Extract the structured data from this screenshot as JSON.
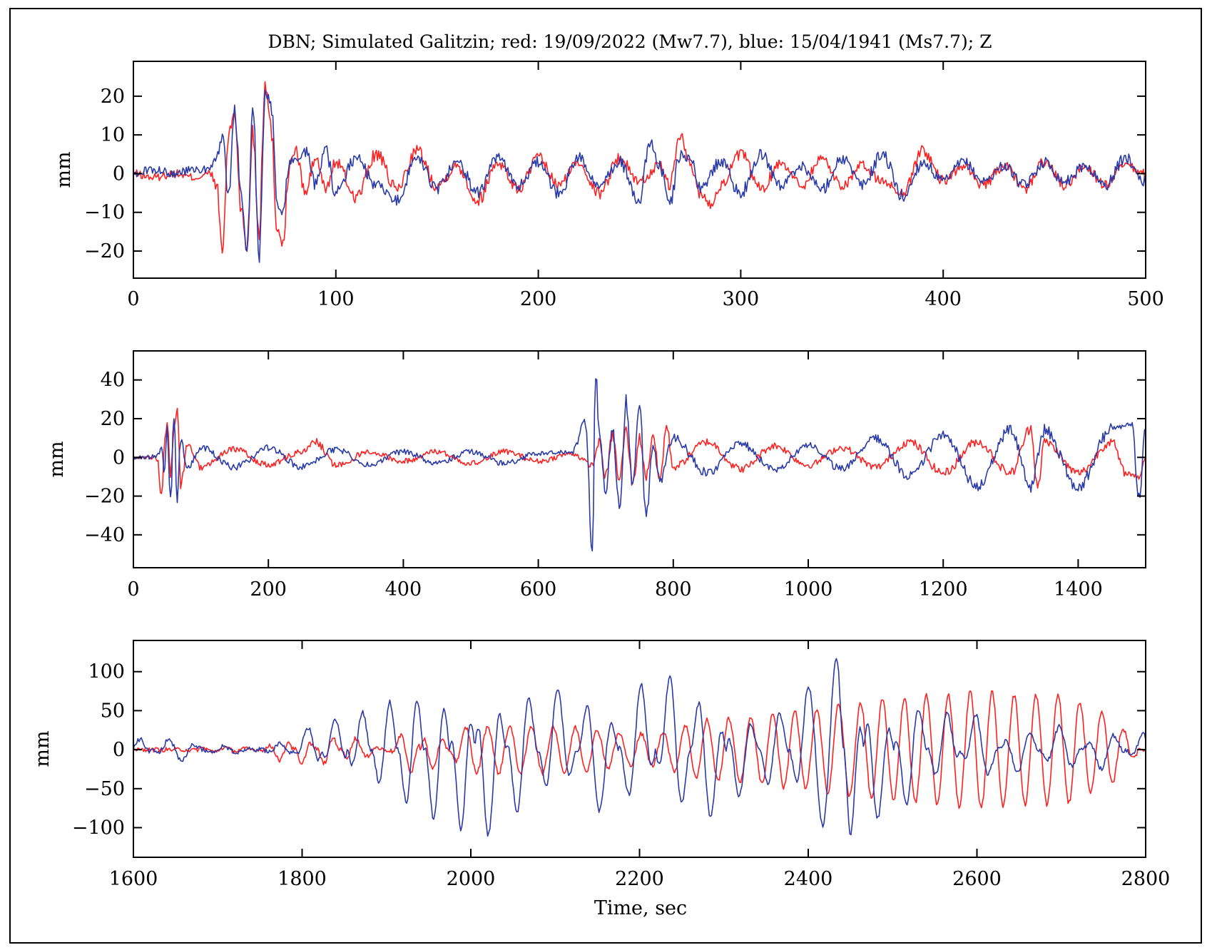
{
  "figure": {
    "title": "DBN; Simulated Galitzin; red: 19/09/2022 (Mw7.7), blue: 15/04/1941 (Ms7.7); Z",
    "xlabel": "Time, sec"
  },
  "colors": {
    "red_series": "#ff2020",
    "blue_series": "#2a3aa8",
    "axes": "#000000",
    "background": "#ffffff"
  },
  "chart_data": [
    {
      "type": "line",
      "title": "DBN; Simulated Galitzin; red: 19/09/2022 (Mw7.7), blue: 15/04/1941 (Ms7.7); Z",
      "xlabel": "",
      "ylabel": "mm",
      "xlim": [
        0,
        500
      ],
      "ylim": [
        -27,
        29
      ],
      "xticks": [
        0,
        100,
        200,
        300,
        400,
        500
      ],
      "yticks": [
        -20,
        -10,
        0,
        10,
        20
      ],
      "grid": false,
      "series": [
        {
          "color": "red",
          "x": [
            0,
            10,
            20,
            30,
            38,
            41,
            44,
            47,
            50,
            53,
            56,
            59,
            62,
            65,
            68,
            71,
            74,
            77,
            80,
            85,
            90,
            95,
            100,
            110,
            120,
            130,
            140,
            150,
            160,
            170,
            180,
            190,
            200,
            210,
            220,
            230,
            240,
            250,
            260,
            265,
            270,
            275,
            280,
            285,
            290,
            300,
            310,
            320,
            330,
            340,
            350,
            360,
            370,
            380,
            390,
            400,
            410,
            420,
            430,
            440,
            450,
            460,
            470,
            480,
            490,
            500
          ],
          "y": [
            0,
            -1,
            0,
            -1,
            0,
            -3,
            -20,
            10,
            16,
            -8,
            -20,
            11,
            -15,
            24,
            12,
            -14,
            -18,
            2,
            6,
            -5,
            4,
            -4,
            3,
            -6,
            5,
            -4,
            6,
            -3,
            2,
            -7,
            3,
            -4,
            4,
            -3,
            3,
            -5,
            4,
            -2,
            2,
            -3,
            10,
            2,
            -5,
            -8,
            -3,
            5,
            -4,
            3,
            -3,
            4,
            -3,
            2,
            -2,
            -5,
            6,
            -2,
            2,
            -3,
            2,
            -4,
            3,
            -3,
            2,
            -3,
            2,
            0
          ]
        },
        {
          "color": "blue",
          "x": [
            0,
            10,
            20,
            30,
            38,
            41,
            44,
            47,
            50,
            53,
            56,
            59,
            62,
            65,
            68,
            71,
            74,
            77,
            80,
            85,
            90,
            95,
            100,
            110,
            120,
            130,
            140,
            150,
            160,
            170,
            180,
            190,
            200,
            210,
            220,
            230,
            240,
            250,
            255,
            260,
            265,
            270,
            275,
            280,
            290,
            300,
            310,
            320,
            330,
            340,
            350,
            360,
            370,
            380,
            390,
            400,
            410,
            420,
            430,
            440,
            450,
            460,
            470,
            480,
            490,
            500
          ],
          "y": [
            0,
            1,
            0,
            1,
            1,
            4,
            9,
            -7,
            17,
            -3,
            -21,
            17,
            -20,
            21,
            18,
            -8,
            -10,
            3,
            4,
            6,
            -3,
            6,
            -5,
            4,
            -3,
            -7,
            4,
            -4,
            3,
            -5,
            4,
            -3,
            3,
            -5,
            4,
            -3,
            3,
            -7,
            8,
            2,
            -8,
            5,
            4,
            -4,
            3,
            -5,
            5,
            -3,
            2,
            -4,
            4,
            -3,
            5,
            -6,
            3,
            -2,
            3,
            -2,
            2,
            -3,
            3,
            -2,
            2,
            -3,
            4,
            -2
          ]
        }
      ]
    },
    {
      "type": "line",
      "title": "",
      "xlabel": "",
      "ylabel": "mm",
      "xlim": [
        0,
        1500
      ],
      "ylim": [
        -57,
        55
      ],
      "xticks": [
        0,
        200,
        400,
        600,
        800,
        1000,
        1200,
        1400
      ],
      "yticks": [
        -40,
        -20,
        0,
        20,
        40
      ],
      "grid": false,
      "series": [
        {
          "color": "red",
          "x": [
            0,
            20,
            35,
            42,
            46,
            50,
            55,
            60,
            65,
            70,
            80,
            100,
            150,
            200,
            250,
            270,
            300,
            350,
            400,
            450,
            500,
            550,
            600,
            650,
            680,
            690,
            700,
            710,
            720,
            730,
            740,
            750,
            760,
            770,
            780,
            790,
            800,
            850,
            900,
            950,
            1000,
            1050,
            1100,
            1150,
            1200,
            1250,
            1300,
            1330,
            1340,
            1350,
            1400,
            1450,
            1470,
            1490,
            1500
          ],
          "y": [
            0,
            0,
            0,
            -20,
            8,
            17,
            -10,
            15,
            24,
            -15,
            6,
            -5,
            4,
            -4,
            3,
            8,
            -4,
            3,
            -2,
            3,
            -3,
            3,
            -2,
            2,
            -4,
            8,
            -10,
            12,
            -12,
            14,
            -14,
            10,
            -10,
            12,
            -12,
            16,
            -5,
            8,
            -6,
            6,
            -4,
            5,
            -5,
            8,
            -8,
            8,
            -8,
            15,
            -15,
            8,
            -8,
            8,
            -8,
            -10,
            0
          ]
        },
        {
          "color": "blue",
          "x": [
            0,
            20,
            35,
            42,
            46,
            50,
            55,
            60,
            65,
            70,
            80,
            100,
            150,
            200,
            250,
            300,
            350,
            400,
            450,
            500,
            550,
            600,
            650,
            670,
            680,
            685,
            690,
            700,
            710,
            720,
            730,
            740,
            750,
            760,
            770,
            780,
            800,
            850,
            900,
            950,
            1000,
            1050,
            1100,
            1150,
            1200,
            1250,
            1300,
            1330,
            1350,
            1400,
            1450,
            1480,
            1490,
            1500
          ],
          "y": [
            0,
            0,
            1,
            5,
            -8,
            17,
            -22,
            20,
            -20,
            10,
            -5,
            5,
            -5,
            5,
            -5,
            4,
            -4,
            3,
            -3,
            3,
            -3,
            2,
            3,
            18,
            -47,
            45,
            12,
            -20,
            15,
            -25,
            28,
            -15,
            27,
            -32,
            8,
            -12,
            10,
            -8,
            7,
            -6,
            6,
            -6,
            10,
            -10,
            12,
            -15,
            14,
            -15,
            14,
            -15,
            15,
            17,
            -21,
            14
          ]
        }
      ]
    },
    {
      "type": "line",
      "title": "",
      "xlabel": "Time, sec",
      "ylabel": "mm",
      "xlim": [
        1600,
        2800
      ],
      "ylim": [
        -138,
        140
      ],
      "xticks": [
        1600,
        1800,
        2000,
        2200,
        2400,
        2600,
        2800
      ],
      "yticks": [
        -100,
        -50,
        0,
        50,
        100
      ],
      "grid": false,
      "series": [
        {
          "color": "red",
          "x": [
            1600,
            1650,
            1700,
            1750,
            1780,
            1800,
            1830,
            1860,
            1900,
            1930,
            1950,
            2000,
            2100,
            2200,
            2300,
            2400,
            2450,
            2500,
            2550,
            2600,
            2650,
            2700,
            2750,
            2800
          ],
          "y": [
            0,
            0,
            3,
            0,
            -15,
            20,
            -20,
            15,
            0,
            30,
            -25,
            30,
            30,
            20,
            40,
            50,
            60,
            65,
            70,
            75,
            70,
            70,
            50,
            0
          ],
          "envelope": true
        },
        {
          "color": "blue",
          "x": [
            1600,
            1650,
            1700,
            1750,
            1780,
            1810,
            1840,
            1870,
            1900,
            1930,
            1960,
            1990,
            2020,
            2060,
            2100,
            2150,
            2200,
            2240,
            2280,
            2320,
            2360,
            2400,
            2435,
            2450,
            2480,
            2520,
            2560,
            2600,
            2650,
            2700,
            2750,
            2800
          ],
          "y": [
            15,
            -15,
            5,
            0,
            -10,
            30,
            -40,
            50,
            -70,
            88,
            -100,
            105,
            -110,
            90,
            -80,
            80,
            -85,
            100,
            -90,
            60,
            -55,
            80,
            115,
            -108,
            90,
            -75,
            50,
            -45,
            30,
            -30,
            25,
            -20
          ],
          "envelope": true
        }
      ]
    }
  ]
}
